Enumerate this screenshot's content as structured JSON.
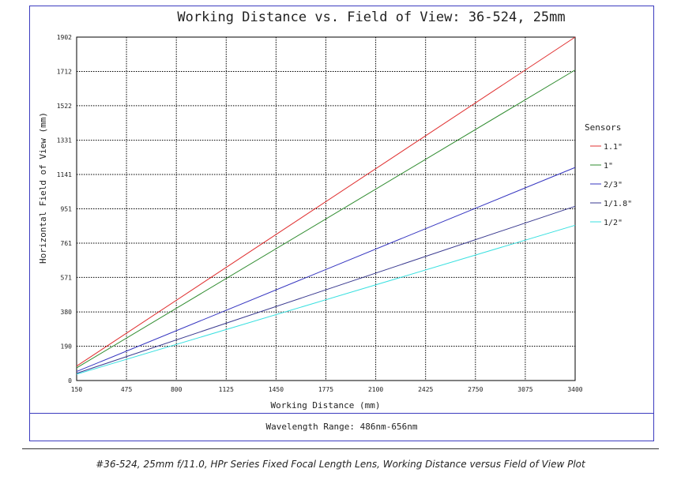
{
  "chart_data": {
    "type": "line",
    "title": "Working Distance vs. Field of View: 36-524, 25mm",
    "xlabel": "Working Distance (mm)",
    "ylabel": "Horizontal Field of View (mm)",
    "xlim": [
      150,
      3400
    ],
    "ylim": [
      0,
      1902
    ],
    "xticks": [
      150,
      475,
      800,
      1125,
      1450,
      1775,
      2100,
      2425,
      2750,
      3075,
      3400
    ],
    "yticks": [
      0,
      190,
      380,
      571,
      761,
      951,
      1141,
      1331,
      1522,
      1712,
      1902
    ],
    "grid": true,
    "legend_title": "Sensors",
    "legend_position": "right",
    "series": [
      {
        "name": "1.1\"",
        "color": "#e03030",
        "x": [
          150,
          3400
        ],
        "y": [
          80,
          1902
        ]
      },
      {
        "name": "1\"",
        "color": "#2e8b2e",
        "x": [
          150,
          3400
        ],
        "y": [
          70,
          1720
        ]
      },
      {
        "name": "2/3\"",
        "color": "#3535c0",
        "x": [
          150,
          3400
        ],
        "y": [
          50,
          1180
        ]
      },
      {
        "name": "1/1.8\"",
        "color": "#3a3a90",
        "x": [
          150,
          3400
        ],
        "y": [
          40,
          965
        ]
      },
      {
        "name": "1/2\"",
        "color": "#38e0e0",
        "x": [
          150,
          3400
        ],
        "y": [
          35,
          860
        ]
      }
    ]
  },
  "footer": {
    "wavelength": "Wavelength Range: 486nm-656nm",
    "caption": "#36-524, 25mm f/11.0, HPr Series Fixed Focal Length Lens, Working Distance versus Field of View Plot"
  }
}
